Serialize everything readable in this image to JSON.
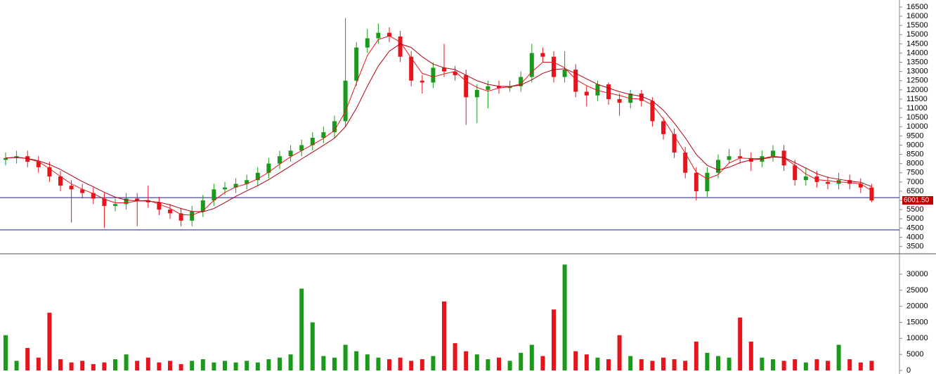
{
  "chart_data": [
    {
      "type": "candlestick",
      "up_color": "#1a9a1a",
      "down_color": "#e8141c",
      "open": [
        8200,
        8300,
        8400,
        8100,
        7800,
        7300,
        6800,
        6600,
        6400,
        6100,
        5700,
        5800,
        6100,
        6000,
        5900,
        5500,
        5300,
        4900,
        5400,
        6000,
        6600,
        6700,
        6900,
        7100,
        7500,
        8000,
        8400,
        8700,
        9000,
        9400,
        9700,
        10300,
        12500,
        14300,
        14800,
        15100,
        14900,
        13800,
        12500,
        12400,
        13200,
        13000,
        12800,
        11600,
        12000,
        12200,
        12100,
        12200,
        12700,
        14000,
        13800,
        12700,
        13100,
        11900,
        11700,
        12300,
        11500,
        11300,
        11800,
        11400,
        10300,
        9600,
        8600,
        7500,
        6500,
        7500,
        8200,
        8400,
        8300,
        8100,
        8400,
        8700,
        7900,
        7100,
        7300,
        7000,
        6900,
        7100,
        6900,
        6700
      ],
      "high": [
        8600,
        8700,
        8700,
        8400,
        8100,
        7600,
        7100,
        6900,
        6700,
        6400,
        6100,
        6400,
        6400,
        6800,
        6200,
        5800,
        5600,
        5700,
        6300,
        6900,
        7000,
        7200,
        7400,
        7800,
        8300,
        8700,
        9000,
        9300,
        9700,
        10000,
        10600,
        15900,
        14600,
        15300,
        15600,
        15400,
        15200,
        14100,
        12800,
        13500,
        14500,
        13300,
        13100,
        12300,
        12500,
        12500,
        12500,
        13000,
        14500,
        14300,
        14100,
        14100,
        13400,
        12200,
        12500,
        12400,
        11800,
        12000,
        12000,
        11600,
        10500,
        9900,
        8900,
        7800,
        7800,
        8500,
        8800,
        8800,
        8600,
        8700,
        9000,
        9000,
        8200,
        7800,
        7600,
        7300,
        7500,
        7400,
        7200,
        6900
      ],
      "low": [
        7900,
        8000,
        7800,
        7500,
        7000,
        6500,
        4800,
        6100,
        5800,
        4500,
        5400,
        5500,
        4600,
        5600,
        5200,
        5000,
        4600,
        4600,
        5100,
        5700,
        6300,
        6400,
        6600,
        6800,
        7200,
        7700,
        8100,
        8400,
        8700,
        9100,
        9400,
        10000,
        12200,
        14000,
        14500,
        14600,
        13500,
        12200,
        11800,
        12100,
        12700,
        12500,
        10100,
        10200,
        11000,
        11800,
        11900,
        11900,
        12400,
        13500,
        12400,
        12400,
        11600,
        11100,
        11400,
        11200,
        10600,
        11000,
        11100,
        10000,
        9300,
        8300,
        7200,
        6000,
        6200,
        7200,
        8000,
        8000,
        7600,
        7800,
        8100,
        7600,
        6800,
        6800,
        6700,
        6600,
        6600,
        6600,
        6400,
        5900
      ],
      "close": [
        8300,
        8400,
        8100,
        7800,
        7300,
        6800,
        6600,
        6400,
        6100,
        5700,
        5800,
        6100,
        6000,
        5900,
        5500,
        5300,
        4900,
        5400,
        6000,
        6600,
        6700,
        6900,
        7100,
        7500,
        8000,
        8400,
        8700,
        9000,
        9400,
        9700,
        10300,
        12500,
        14300,
        14800,
        15100,
        14900,
        13800,
        12500,
        12400,
        13200,
        13000,
        12800,
        11600,
        12000,
        12200,
        12100,
        12200,
        12700,
        14000,
        13800,
        12700,
        13100,
        11900,
        11700,
        12300,
        11500,
        11300,
        11800,
        11400,
        10300,
        9600,
        8600,
        7500,
        6500,
        7500,
        8200,
        8400,
        8300,
        8100,
        8400,
        8700,
        7900,
        7100,
        7300,
        7000,
        6900,
        7100,
        6900,
        6700,
        6000
      ],
      "series": [
        {
          "color": "#e8141c",
          "values": [
            8300,
            8350,
            8270,
            8100,
            7730,
            7300,
            6900,
            6600,
            6370,
            6070,
            5870,
            5870,
            5970,
            6000,
            5800,
            5570,
            5230,
            5200,
            5430,
            6000,
            6430,
            6730,
            6900,
            7170,
            7530,
            7970,
            8370,
            8700,
            9030,
            9370,
            9800,
            10830,
            12370,
            13870,
            14730,
            14930,
            14600,
            13730,
            12900,
            12700,
            12870,
            13000,
            12470,
            12130,
            11930,
            12100,
            12170,
            12330,
            12970,
            13500,
            13500,
            13200,
            12570,
            12230,
            11970,
            11830,
            11700,
            11530,
            11500,
            11170,
            10430,
            9500,
            8570,
            7530,
            7170,
            7400,
            8030,
            8300,
            8270,
            8270,
            8400,
            8330,
            7900,
            7430,
            7130,
            7070,
            7000,
            6970,
            6900,
            6530
          ]
        },
        {
          "color": "#b00010",
          "values": [
            8300,
            8330,
            8280,
            8150,
            7950,
            7680,
            7350,
            7020,
            6740,
            6440,
            6180,
            6020,
            5980,
            5960,
            5900,
            5760,
            5560,
            5400,
            5380,
            5560,
            5880,
            6220,
            6520,
            6800,
            7130,
            7500,
            7870,
            8250,
            8620,
            8990,
            9380,
            10000,
            11000,
            12200,
            13300,
            14100,
            14500,
            14300,
            13800,
            13400,
            13200,
            13100,
            12800,
            12500,
            12300,
            12200,
            12180,
            12260,
            12550,
            12900,
            13100,
            13150,
            12900,
            12600,
            12300,
            12100,
            11900,
            11750,
            11650,
            11400,
            10900,
            10200,
            9400,
            8500,
            7900,
            7650,
            7800,
            8050,
            8200,
            8250,
            8350,
            8330,
            8050,
            7750,
            7450,
            7250,
            7150,
            7050,
            6980,
            6750
          ]
        }
      ],
      "hlines": [
        6150,
        4400
      ],
      "hline_color": "#1a1a8c",
      "last_price": {
        "value": 6001.5,
        "label": "6001.50"
      },
      "ylim": [
        3140,
        16880
      ],
      "yticks": [
        3500,
        4000,
        4500,
        5000,
        5500,
        6000,
        6500,
        7000,
        7500,
        8000,
        8500,
        9000,
        9500,
        10000,
        10500,
        11000,
        11500,
        12000,
        12500,
        13000,
        13500,
        14000,
        14500,
        15000,
        15500,
        16000,
        16500
      ]
    },
    {
      "type": "bar",
      "values": [
        11000,
        3000,
        7000,
        4000,
        18000,
        3500,
        2500,
        3000,
        2000,
        2500,
        3500,
        5000,
        3000,
        4000,
        2500,
        3000,
        2000,
        3000,
        3500,
        2500,
        3000,
        2500,
        3000,
        2500,
        3500,
        4000,
        5000,
        25500,
        15000,
        4500,
        4000,
        8000,
        6000,
        5000,
        4000,
        3500,
        4000,
        3000,
        3500,
        4500,
        21500,
        8500,
        6000,
        5000,
        3500,
        4000,
        3000,
        5500,
        8000,
        4500,
        19000,
        33000,
        6000,
        5000,
        4000,
        3500,
        11000,
        4500,
        3500,
        3000,
        4000,
        3500,
        3000,
        9000,
        5500,
        4500,
        4000,
        16500,
        9000,
        4000,
        3500,
        3000,
        3500,
        2500,
        3500,
        3000,
        8000,
        3500,
        2500,
        3000
      ],
      "ylim": [
        -1100,
        35700
      ],
      "yticks": [
        0,
        5000,
        10000,
        15000,
        20000,
        25000,
        30000
      ]
    }
  ]
}
